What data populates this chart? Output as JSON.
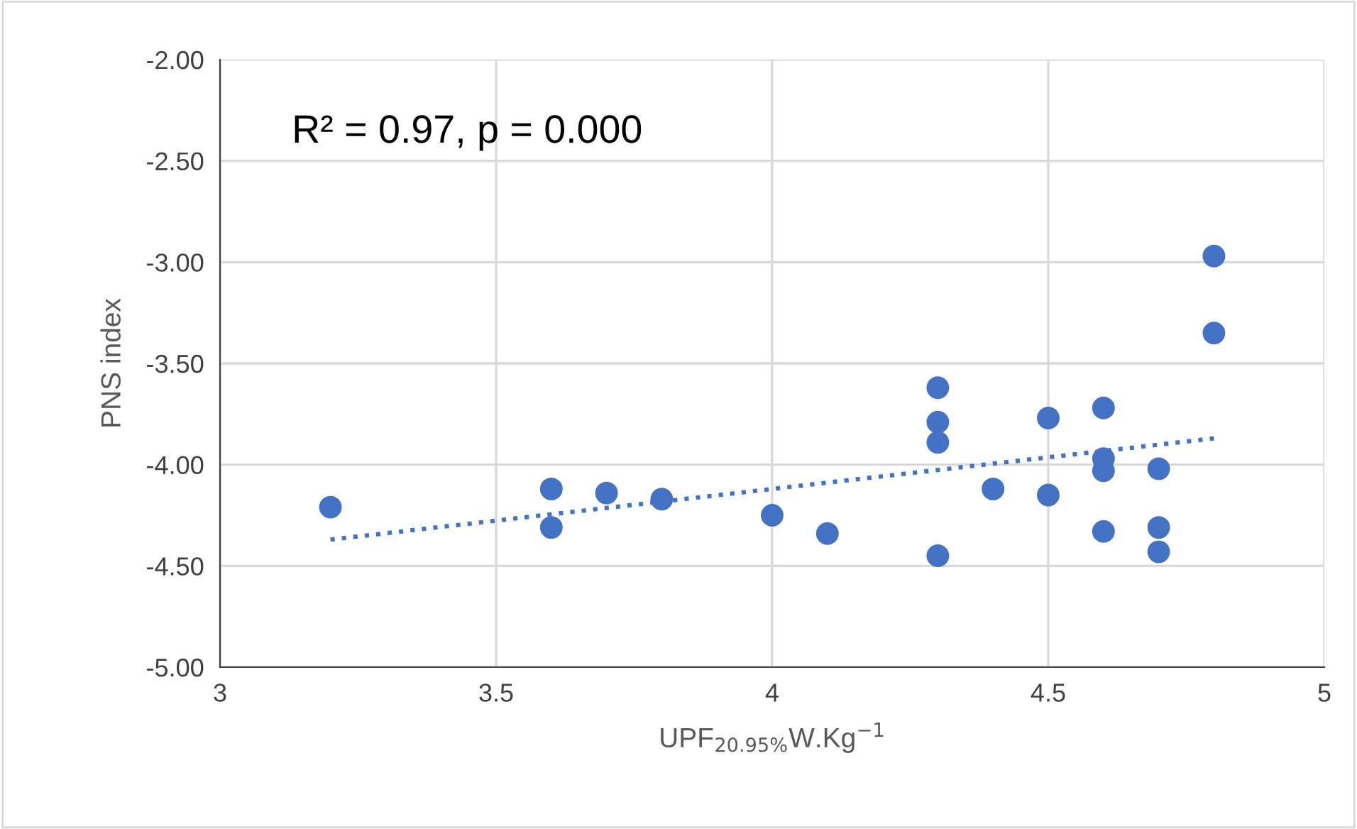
{
  "chart_data": {
    "type": "scatter",
    "xlabel": "UPF$_{20.95%}$W.Kg$^{−1}$",
    "ylabel": "PNS index",
    "annotations": [
      "R² = 0.97, p = 0.000"
    ],
    "xlim": [
      3,
      5
    ],
    "xticks": [
      3,
      3.5,
      4,
      4.5,
      5
    ],
    "ylim": [
      -5,
      -2
    ],
    "yticks": [
      {
        "value": -5,
        "label": "-5.00"
      },
      {
        "value": -4.5,
        "label": "-4.50"
      },
      {
        "value": -4,
        "label": "-4.00"
      },
      {
        "value": -3.5,
        "label": "-3.50"
      },
      {
        "value": -3,
        "label": "-3.00"
      },
      {
        "value": -2.5,
        "label": "-2.50"
      },
      {
        "value": -2,
        "label": "-2.00"
      }
    ],
    "grid": true,
    "legend": false,
    "marker": "circle",
    "series": [
      {
        "color": "#4472c4",
        "x": [
          3.2,
          3.6,
          3.6,
          3.7,
          3.8,
          4.0,
          4.1,
          4.3,
          4.3,
          4.3,
          4.3,
          4.4,
          4.5,
          4.5,
          4.6,
          4.6,
          4.6,
          4.6,
          4.7,
          4.7,
          4.7,
          4.8,
          4.8
        ],
        "values": [
          -4.21,
          -4.12,
          -4.31,
          -4.14,
          -4.17,
          -4.25,
          -4.34,
          -3.62,
          -3.79,
          -3.89,
          -4.45,
          -4.12,
          -3.77,
          -4.15,
          -3.72,
          -3.97,
          -4.03,
          -4.33,
          -4.02,
          -4.31,
          -4.43,
          -2.97,
          -3.35
        ]
      },
      {
        "type": "line",
        "color": "#4472c4",
        "line_style": "dotted",
        "marker": "none",
        "x": [
          3.2,
          4.8
        ],
        "values": [
          -4.37,
          -3.87
        ]
      }
    ]
  }
}
